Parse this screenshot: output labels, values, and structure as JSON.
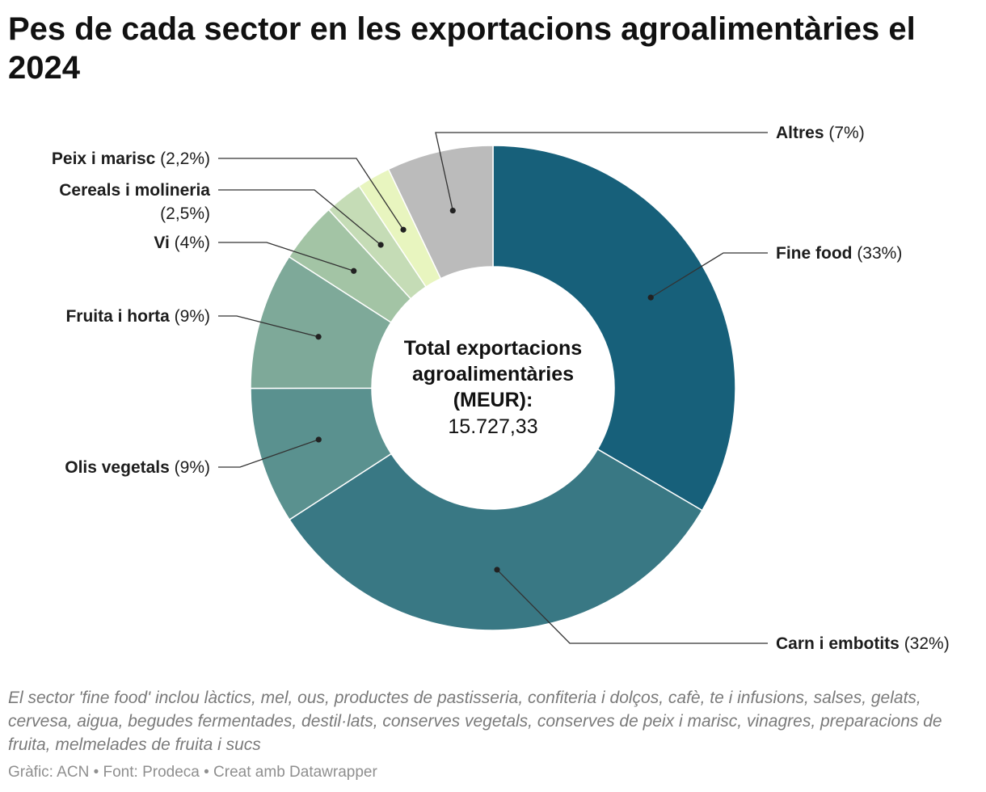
{
  "title": "Pes de cada sector en les exportacions agroalimentàries el 2024",
  "chart_data": {
    "type": "pie",
    "variant": "donut",
    "title": "Pes de cada sector en les exportacions agroalimentàries el 2024",
    "center_label": [
      "Total exportacions",
      "agroalimentàries",
      "(MEUR):"
    ],
    "center_value": "15.727,33",
    "series": [
      {
        "name": "Fine food",
        "value": 33,
        "label": "(33%)",
        "color": "#17607a"
      },
      {
        "name": "Carn i embotits",
        "value": 32,
        "label": "(32%)",
        "color": "#397884"
      },
      {
        "name": "Olis vegetals",
        "value": 9,
        "label": "(9%)",
        "color": "#5a918f"
      },
      {
        "name": "Fruita i horta",
        "value": 9,
        "label": "(9%)",
        "color": "#7ea999"
      },
      {
        "name": "Vi",
        "value": 4,
        "label": "(4%)",
        "color": "#a3c4a5"
      },
      {
        "name": "Cereals i molineria",
        "value": 2.5,
        "label": "(2,5%)",
        "color": "#c5dcb6"
      },
      {
        "name": "Peix i marisc",
        "value": 2.2,
        "label": "(2,2%)",
        "color": "#e8f5bf"
      },
      {
        "name": "Altres",
        "value": 7,
        "label": "(7%)",
        "color": "#bbbbbb"
      }
    ]
  },
  "footnote": "El sector 'fine food' inclou làctics, mel, ous, productes de pastisseria, confiteria i dolços, cafè, te i infusions, salses, gelats, cervesa, aigua, begudes fermentades, destil·lats, conserves vegetals, conserves de peix i marisc, vinagres, preparacions de fruita, melmelades de fruita i sucs",
  "credits": "Gràfic: ACN • Font: Prodeca • Creat amb Datawrapper"
}
